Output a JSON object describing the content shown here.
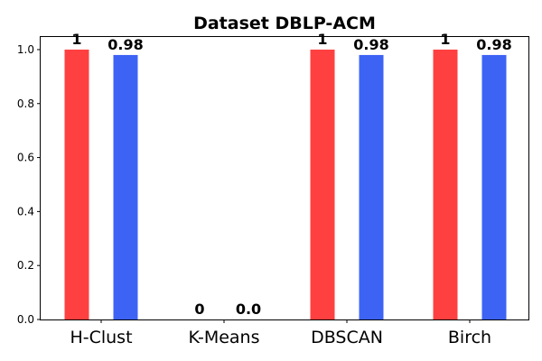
{
  "chart_data": {
    "type": "bar",
    "title": "Dataset DBLP-ACM",
    "xlabel": "",
    "ylabel": "",
    "categories": [
      "H-Clust",
      "K-Means",
      "DBSCAN",
      "Birch"
    ],
    "ylim": [
      0,
      1.05
    ],
    "yticks": [
      "0.0",
      "0.2",
      "0.4",
      "0.6",
      "0.8",
      "1.0"
    ],
    "series": [
      {
        "values": [
          1,
          0,
          1,
          1
        ],
        "labels": [
          "1",
          "0",
          "1",
          "1"
        ],
        "color": "#ff4040"
      },
      {
        "values": [
          0.98,
          0,
          0.98,
          0.98
        ],
        "labels": [
          "0.98",
          "0.0",
          "0.98",
          "0.98"
        ],
        "color": "#3d63f5"
      }
    ],
    "grid": false,
    "legend": "none"
  }
}
